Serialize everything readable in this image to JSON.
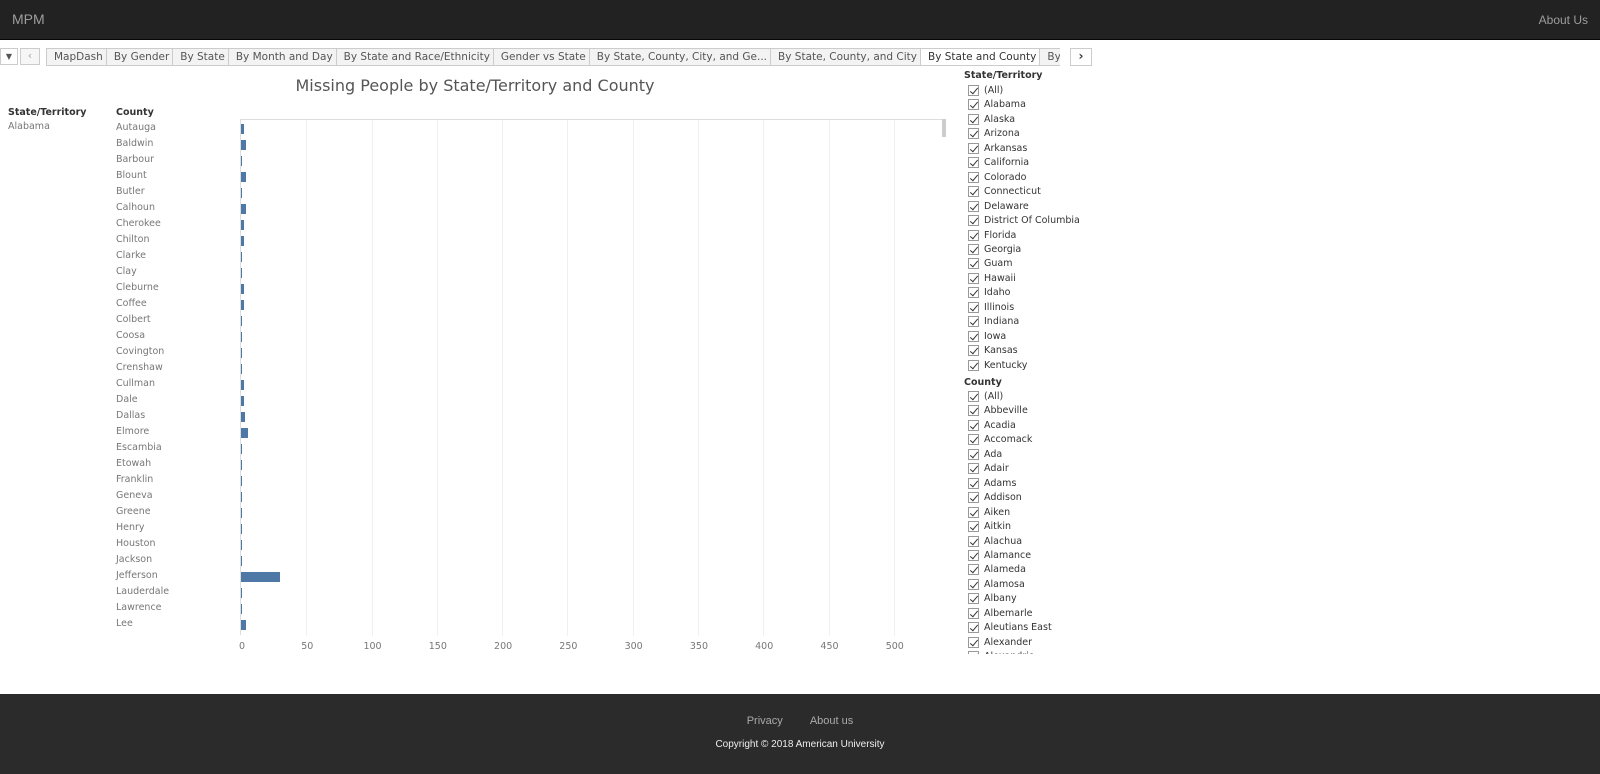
{
  "header": {
    "brand": "MPM",
    "about": "About Us"
  },
  "tabs": {
    "items": [
      "MapDash",
      "By Gender",
      "By State",
      "By Month and Day",
      "By State and Race/Ethnicity",
      "Gender vs State",
      "By State, County, City, and Ge...",
      "By State, County, and City",
      "By State and County",
      "By Year",
      "B"
    ],
    "active": "By State and County"
  },
  "chart_data": {
    "type": "bar",
    "orientation": "horizontal",
    "title": "Missing People by State/Territory and County",
    "row_headers": [
      "State/Territory",
      "County"
    ],
    "state": "Alabama",
    "categories": [
      "Autauga",
      "Baldwin",
      "Barbour",
      "Blount",
      "Butler",
      "Calhoun",
      "Cherokee",
      "Chilton",
      "Clarke",
      "Clay",
      "Cleburne",
      "Coffee",
      "Colbert",
      "Coosa",
      "Covington",
      "Crenshaw",
      "Cullman",
      "Dale",
      "Dallas",
      "Elmore",
      "Escambia",
      "Etowah",
      "Franklin",
      "Geneva",
      "Greene",
      "Henry",
      "Houston",
      "Jackson",
      "Jefferson",
      "Lauderdale",
      "Lawrence",
      "Lee"
    ],
    "values": [
      2,
      4,
      1,
      4,
      1,
      4,
      2,
      2,
      1,
      1,
      2,
      2,
      1,
      1,
      1,
      1,
      2,
      2,
      3,
      5,
      1,
      1,
      1,
      1,
      1,
      1,
      1,
      1,
      30,
      1,
      1,
      4
    ],
    "xlim": [
      0,
      540
    ],
    "xticks": [
      0,
      50,
      100,
      150,
      200,
      250,
      300,
      350,
      400,
      450,
      500
    ],
    "grid": true
  },
  "filters": {
    "state": {
      "title": "State/Territory",
      "items": [
        "(All)",
        "Alabama",
        "Alaska",
        "Arizona",
        "Arkansas",
        "California",
        "Colorado",
        "Connecticut",
        "Delaware",
        "District Of Columbia",
        "Florida",
        "Georgia",
        "Guam",
        "Hawaii",
        "Idaho",
        "Illinois",
        "Indiana",
        "Iowa",
        "Kansas",
        "Kentucky"
      ]
    },
    "county": {
      "title": "County",
      "items": [
        "(All)",
        "Abbeville",
        "Acadia",
        "Accomack",
        "Ada",
        "Adair",
        "Adams",
        "Addison",
        "Aiken",
        "Aitkin",
        "Alachua",
        "Alamance",
        "Alameda",
        "Alamosa",
        "Albany",
        "Albemarle",
        "Aleutians East",
        "Alexander",
        "Alexandria"
      ]
    }
  },
  "footer": {
    "privacy": "Privacy",
    "about": "About us",
    "copyright": "Copyright © 2018 American University"
  }
}
